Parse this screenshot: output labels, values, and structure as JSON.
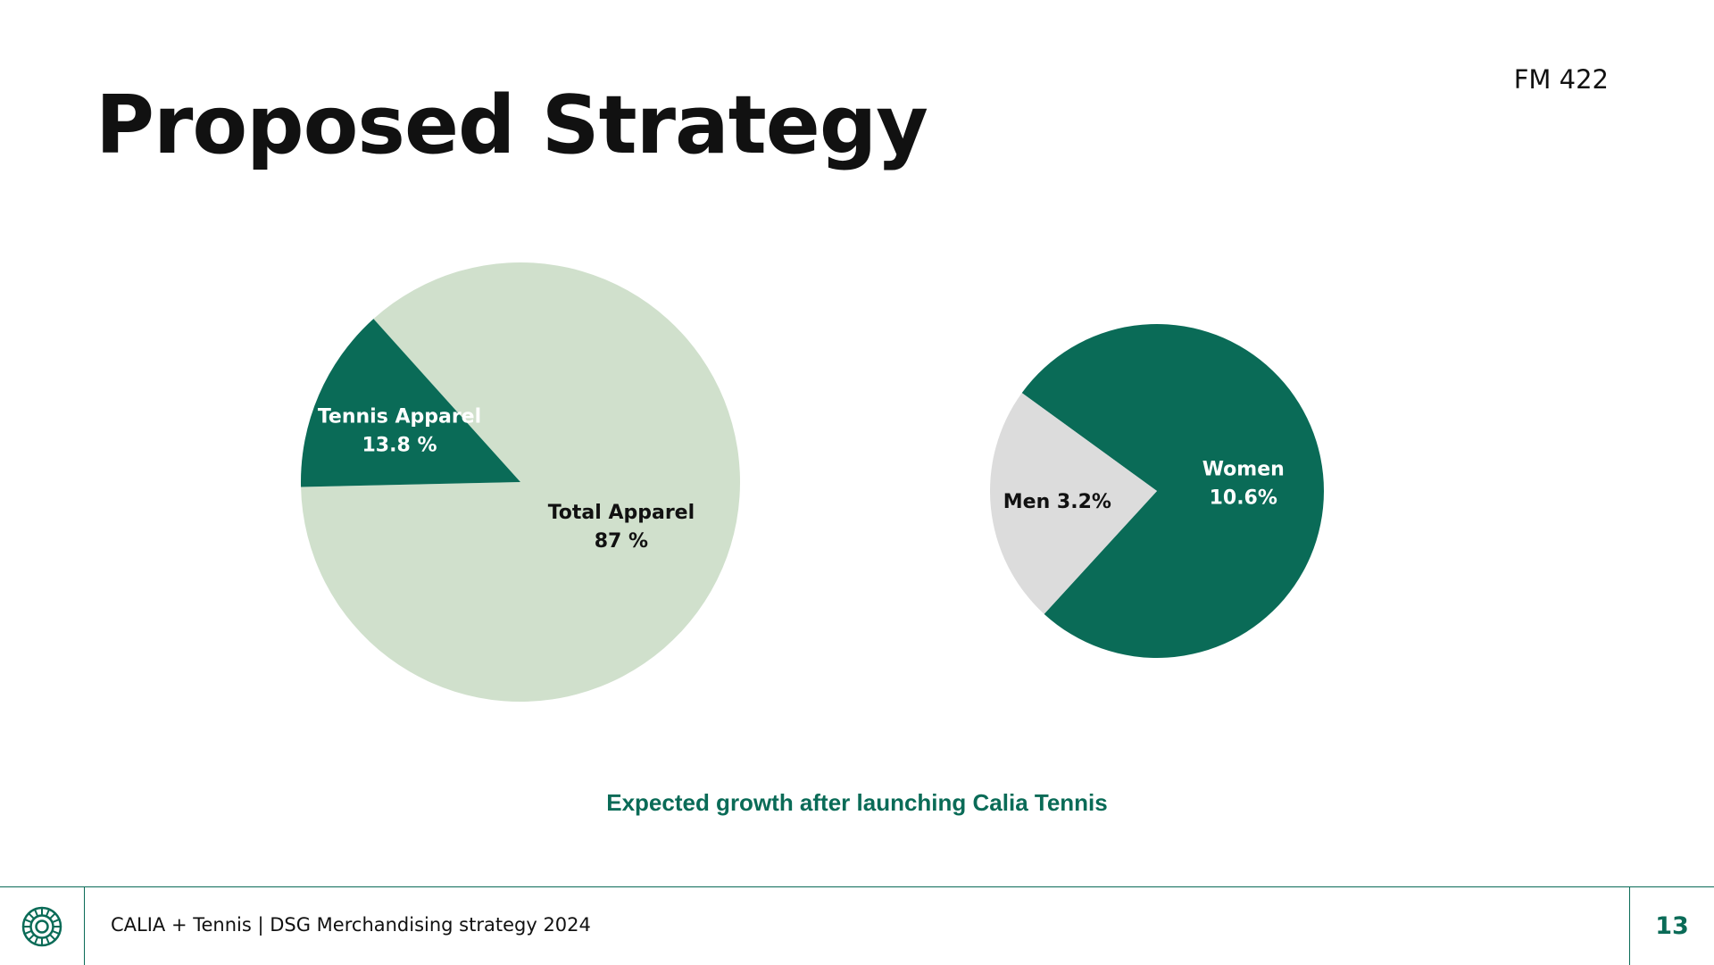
{
  "slide": {
    "title": "Proposed Strategy",
    "course_code": "FM 422",
    "caption": "Expected growth after launching Calia Tennis"
  },
  "footer": {
    "text": "CALIA + Tennis | DSG Merchandising strategy 2024",
    "page_number": "13",
    "logo_icon": "calia-logo-icon"
  },
  "colors": {
    "accent": "#0a6b57",
    "light_green": "#d0e0cc",
    "light_gray": "#dcdcdc"
  },
  "chart_data": [
    {
      "type": "pie",
      "slices": [
        {
          "label_lines": [
            "Total Apparel",
            "87 %"
          ],
          "value": 87,
          "color": "#d0e0cc",
          "text_color": "#111111"
        },
        {
          "label_lines": [
            "Tennis Apparel",
            "13.8 %"
          ],
          "value": 13.8,
          "color": "#0a6b57",
          "text_color": "#ffffff"
        }
      ]
    },
    {
      "type": "pie",
      "slices": [
        {
          "label_lines": [
            "Women",
            "10.6%"
          ],
          "value": 10.6,
          "color": "#0a6b57",
          "text_color": "#ffffff"
        },
        {
          "label_lines": [
            "Men 3.2%"
          ],
          "value": 3.2,
          "color": "#dcdcdc",
          "text_color": "#111111"
        }
      ]
    }
  ]
}
